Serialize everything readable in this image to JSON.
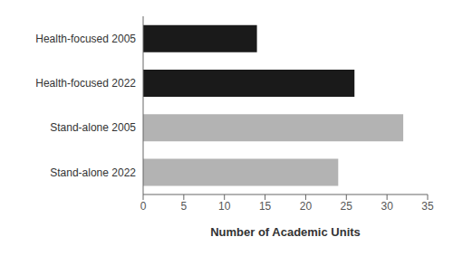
{
  "chart_data": {
    "type": "bar",
    "orientation": "horizontal",
    "categories": [
      "Health-focused 2005",
      "Health-focused 2022",
      "Stand-alone 2005",
      "Stand-alone 2022"
    ],
    "values": [
      14,
      26,
      32,
      24
    ],
    "colors": [
      "#1a1a1a",
      "#1a1a1a",
      "#b3b3b3",
      "#b3b3b3"
    ],
    "xlabel": "Number of Academic Units",
    "xlim": [
      0,
      35
    ],
    "xticks": [
      0,
      5,
      10,
      15,
      20,
      25,
      30,
      35
    ],
    "grid": false
  }
}
